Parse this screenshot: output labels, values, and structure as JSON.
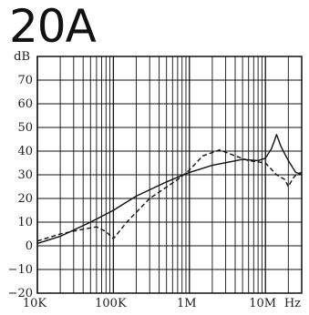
{
  "chart_data": {
    "type": "line",
    "title": "20A",
    "xscale": "log",
    "xlim": [
      10000,
      30000000
    ],
    "ylim": [
      -20,
      80
    ],
    "yunit": "dB",
    "xunit": "Hz",
    "x_tick_labels": [
      {
        "value": 10000,
        "label": "10K"
      },
      {
        "value": 100000,
        "label": "100K"
      },
      {
        "value": 1000000,
        "label": "1M"
      },
      {
        "value": 10000000,
        "label": "10M"
      }
    ],
    "y_tick_labels": [
      {
        "value": 70,
        "label": "70"
      },
      {
        "value": 60,
        "label": "60"
      },
      {
        "value": 50,
        "label": "50"
      },
      {
        "value": 40,
        "label": "40"
      },
      {
        "value": 30,
        "label": "30"
      },
      {
        "value": 20,
        "label": "20"
      },
      {
        "value": 10,
        "label": "10"
      },
      {
        "value": 0,
        "label": "0"
      },
      {
        "value": -10,
        "label": "−10"
      },
      {
        "value": -20,
        "label": "−20"
      }
    ],
    "grid": true,
    "series": [
      {
        "style": "solid",
        "x": [
          10000,
          20000,
          50000,
          100000,
          200000,
          500000,
          1000000,
          2000000,
          5000000,
          8000000,
          10000000,
          12000000,
          13000000,
          14000000,
          16000000,
          20000000,
          25000000,
          30000000
        ],
        "y": [
          1,
          4,
          10,
          15,
          21,
          27,
          31,
          34,
          36.5,
          36,
          37,
          41,
          44,
          47,
          42,
          36,
          31,
          30
        ]
      },
      {
        "style": "dashed",
        "x": [
          10000,
          20000,
          40000,
          60000,
          80000,
          100000,
          150000,
          300000,
          700000,
          1000000,
          1500000,
          2500000,
          4000000,
          6000000,
          10000000,
          14000000,
          18000000,
          20000000,
          23000000,
          26000000,
          30000000
        ],
        "y": [
          2,
          5,
          7,
          8,
          6,
          3,
          10,
          20,
          28,
          32,
          38,
          40.5,
          38,
          36,
          35,
          30,
          28,
          25,
          28.5,
          30.5,
          31
        ]
      }
    ]
  }
}
